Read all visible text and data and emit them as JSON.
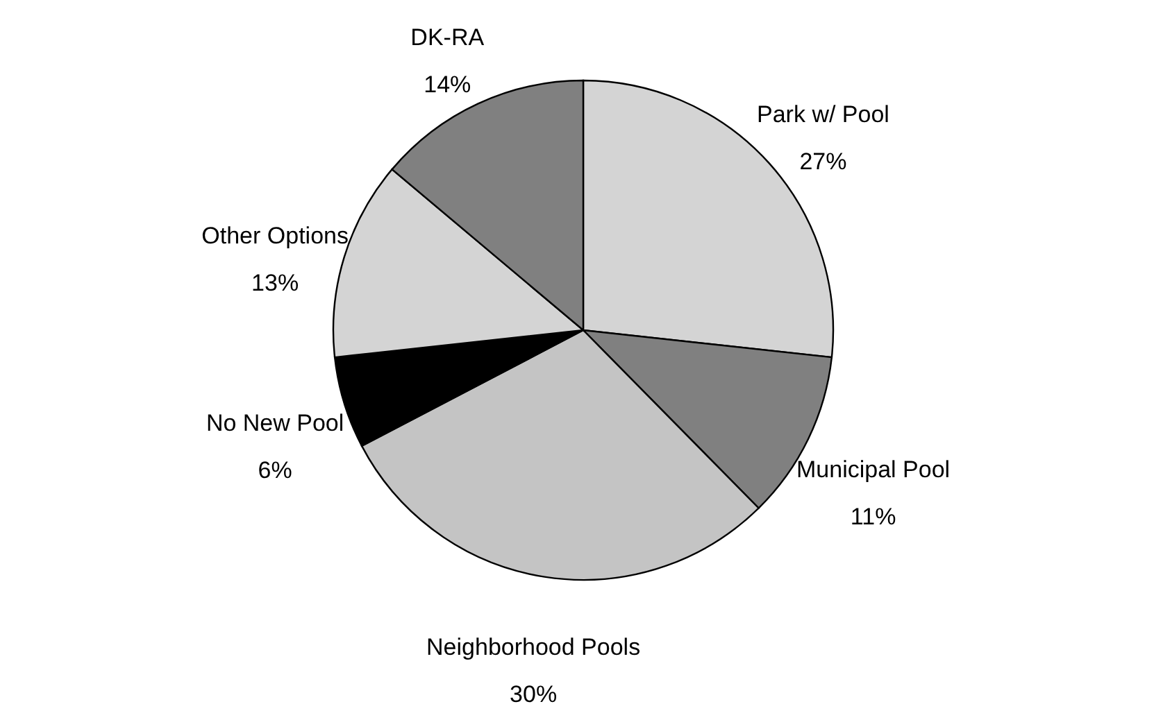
{
  "chart_data": {
    "type": "pie",
    "categories": [
      "Park w/ Pool",
      "Municipal Pool",
      "Neighborhood Pools",
      "No New Pool",
      "Other Options",
      "DK-RA"
    ],
    "values": [
      27,
      11,
      30,
      6,
      13,
      14
    ],
    "value_labels": [
      "27%",
      "11%",
      "30%",
      "6%",
      "13%",
      "14%"
    ],
    "colors": [
      "#d4d4d4",
      "#808080",
      "#c4c4c4",
      "#000000",
      "#d4d4d4",
      "#808080"
    ]
  }
}
